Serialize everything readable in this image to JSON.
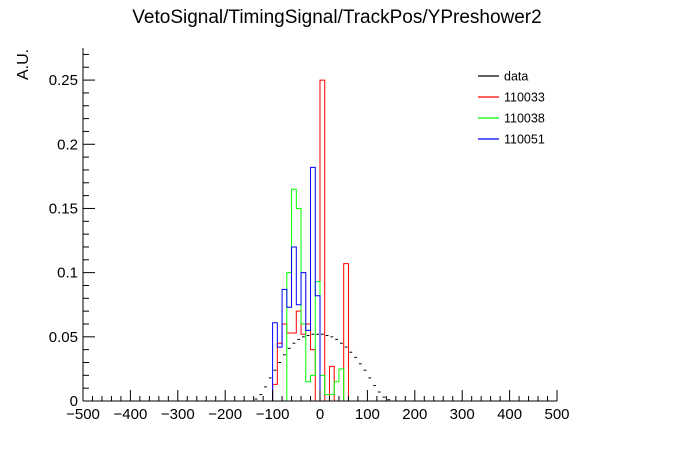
{
  "chart_data": {
    "type": "step-histogram",
    "title": "VetoSignal/TimingSignal/TrackPos/YPreshower2",
    "xlabel": "",
    "ylabel": "A.U.",
    "xlim": [
      -500,
      500
    ],
    "ylim": [
      0,
      0.275
    ],
    "x_ticks": [
      -500,
      -400,
      -300,
      -200,
      -100,
      0,
      100,
      200,
      300,
      400,
      500
    ],
    "x_tick_labels": [
      "−500",
      "−400",
      "−300",
      "−200",
      "−100",
      "0",
      "100",
      "200",
      "300",
      "400",
      "500"
    ],
    "y_ticks": [
      0,
      0.05,
      0.1,
      0.15,
      0.2,
      0.25
    ],
    "y_tick_labels": [
      "0",
      "0.05",
      "0.1",
      "0.15",
      "0.2",
      "0.25"
    ],
    "bin_width": 10,
    "legend_position": "top-right",
    "series": [
      {
        "name": "data",
        "color": "#000000",
        "style": "error-bars",
        "x": [
          -500,
          -490,
          -480,
          -470,
          -460,
          -450,
          -440,
          -430,
          -420,
          -410,
          -400,
          -390,
          -380,
          -370,
          -360,
          -350,
          -340,
          -330,
          -320,
          -310,
          -300,
          -290,
          -280,
          -270,
          -260,
          -250,
          -240,
          -230,
          -220,
          -210,
          -200,
          -190,
          -180,
          -170,
          -160,
          -150,
          -140,
          -130,
          -120,
          -110,
          -100,
          -90,
          -80,
          -70,
          -60,
          -50,
          -40,
          -30,
          -20,
          -10,
          0,
          10,
          20,
          30,
          40,
          50,
          60,
          70,
          80,
          90,
          100,
          110,
          120,
          130,
          140,
          150,
          160,
          170,
          180,
          190,
          200,
          210,
          220,
          230,
          240,
          250,
          260,
          270,
          280,
          290,
          300,
          310,
          320,
          330,
          340,
          350,
          360,
          370,
          380,
          390,
          400,
          410,
          420,
          430,
          440,
          450,
          460,
          470,
          480,
          490
        ],
        "values": [
          0,
          0,
          0,
          0,
          0,
          0,
          0,
          0,
          0,
          0,
          0,
          0,
          0,
          0,
          0,
          0,
          0,
          0,
          0,
          0,
          0,
          0,
          0,
          0,
          0,
          0,
          0,
          0,
          0,
          0,
          0,
          0,
          0,
          0,
          0,
          0,
          0.0015,
          0.005,
          0.011,
          0.018,
          0.024,
          0.03,
          0.036,
          0.041,
          0.045,
          0.048,
          0.05,
          0.051,
          0.052,
          0.052,
          0.052,
          0.051,
          0.05,
          0.048,
          0.045,
          0.042,
          0.038,
          0.034,
          0.029,
          0.024,
          0.018,
          0.012,
          0.007,
          0.003,
          0.001,
          0,
          0,
          0,
          0,
          0,
          0,
          0,
          0,
          0,
          0,
          0,
          0,
          0,
          0,
          0,
          0,
          0,
          0,
          0,
          0,
          0,
          0,
          0,
          0,
          0,
          0,
          0,
          0,
          0,
          0,
          0,
          0,
          0,
          0,
          0
        ]
      },
      {
        "name": "110033",
        "color": "#ff0000",
        "style": "step",
        "x": [
          -100,
          -90,
          -80,
          -70,
          -60,
          -50,
          -40,
          -30,
          -20,
          -10,
          0,
          10,
          20,
          30,
          40,
          50,
          60,
          70,
          80,
          90
        ],
        "values": [
          0.013,
          0.045,
          0.06,
          0.053,
          0.053,
          0.07,
          0.052,
          0.06,
          0.04,
          0.0,
          0.25,
          0.0,
          0.027,
          0.0,
          0.0,
          0.107,
          0.0,
          0.0,
          0.0,
          0.0
        ]
      },
      {
        "name": "110038",
        "color": "#00ff00",
        "style": "step",
        "x": [
          -100,
          -90,
          -80,
          -70,
          -60,
          -50,
          -40,
          -30,
          -20,
          -10,
          0,
          10,
          20,
          30,
          40,
          50,
          60,
          70,
          80,
          90
        ],
        "values": [
          0.0,
          0.0,
          0.0,
          0.1,
          0.165,
          0.15,
          0.06,
          0.015,
          0.02,
          0.093,
          0.02,
          0.005,
          0.005,
          0.015,
          0.025,
          0.0,
          0.0,
          0.0,
          0.0,
          0.0
        ]
      },
      {
        "name": "110051",
        "color": "#0000ff",
        "style": "step",
        "x": [
          -100,
          -90,
          -80,
          -70,
          -60,
          -50,
          -40,
          -30,
          -20,
          -10,
          0,
          10,
          20,
          30,
          40,
          50,
          60,
          70,
          80,
          90
        ],
        "values": [
          0.061,
          0.042,
          0.087,
          0.073,
          0.12,
          0.075,
          0.1,
          0.055,
          0.182,
          0.082,
          0.0,
          0.0,
          0.0,
          0.0,
          0.0,
          0.0,
          0.0,
          0.0,
          0.0,
          0.0
        ]
      }
    ]
  }
}
